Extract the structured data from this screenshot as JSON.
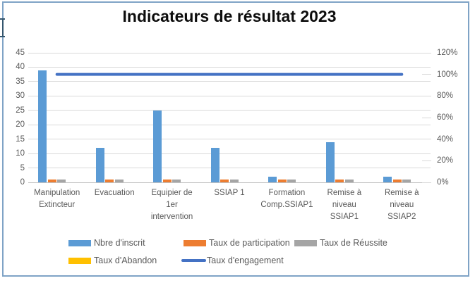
{
  "chart_data": {
    "type": "bar",
    "title": "Indicateurs de résultat 2023",
    "categories": [
      "Manipulation\nExtincteur",
      "Evacuation",
      "Equipier de\n1er\nintervention",
      "SSIAP 1",
      "Formation\nComp.SSIAP1",
      "Remise à\nniveau\nSSIAP1",
      "Remise à\nniveau\nSSIAP2"
    ],
    "series": [
      {
        "name": "Nbre d'inscrit",
        "type": "bar",
        "axis": "left",
        "percent": false,
        "color": "#5B9BD5",
        "values": [
          39,
          12,
          25,
          12,
          2,
          14,
          2
        ]
      },
      {
        "name": "Taux de participation",
        "type": "bar",
        "axis": "left",
        "percent": true,
        "color": "#ED7D31",
        "values": [
          100,
          100,
          100,
          100,
          100,
          100,
          100
        ]
      },
      {
        "name": "Taux de Réussite",
        "type": "bar",
        "axis": "left",
        "percent": true,
        "color": "#A5A5A5",
        "values": [
          100,
          100,
          100,
          100,
          100,
          100,
          100
        ]
      },
      {
        "name": "Taux d'Abandon",
        "type": "bar",
        "axis": "left",
        "percent": true,
        "color": "#FFC000",
        "values": [
          0,
          0,
          0,
          0,
          0,
          0,
          0
        ]
      },
      {
        "name": "Taux d'engagement",
        "type": "line",
        "axis": "right",
        "percent": true,
        "color": "#4472C4",
        "values": [
          100,
          100,
          100,
          100,
          100,
          100,
          100
        ]
      }
    ],
    "left_axis": {
      "min": 0,
      "max": 45,
      "step": 5,
      "tick_labels": [
        "0",
        "5",
        "10",
        "15",
        "20",
        "25",
        "30",
        "35",
        "40",
        "45"
      ]
    },
    "right_axis": {
      "min": 0,
      "max": 120,
      "step": 20,
      "tick_labels": [
        "0%",
        "20%",
        "40%",
        "60%",
        "80%",
        "100%",
        "120%"
      ]
    },
    "grid": true,
    "legend_position": "bottom",
    "colors": {
      "grid_line": "#D9D9D9",
      "axis_line": "#C2C2C2",
      "text": "#595959",
      "frame_border": "#7FA3C6"
    }
  }
}
